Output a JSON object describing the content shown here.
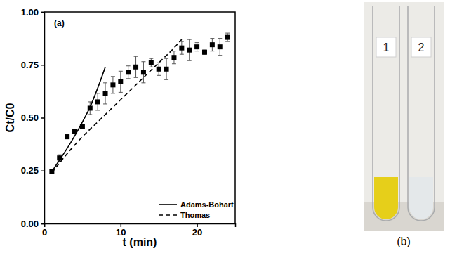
{
  "chart_data": {
    "type": "scatter",
    "panel_label": "(a)",
    "x_label": "t (min)",
    "y_label": "Ct/C0",
    "xlim": [
      0,
      25
    ],
    "xticks": [
      0,
      10,
      20
    ],
    "ylim": [
      0,
      1
    ],
    "yticks": [
      {
        "value": 0,
        "label": "0.00"
      },
      {
        "value": 0.25,
        "label": "0.25"
      },
      {
        "value": 0.5,
        "label": "0.50"
      },
      {
        "value": 0.75,
        "label": "0.75"
      },
      {
        "value": 1,
        "label": "1.00"
      }
    ],
    "grid": false,
    "legend": "lower right",
    "series": [
      {
        "type": "scatter",
        "marker": "square",
        "color": "#000000",
        "x": [
          1,
          2,
          3,
          4,
          5,
          6,
          7,
          8,
          9,
          10,
          11,
          12,
          13,
          14,
          15,
          16,
          17,
          18,
          19,
          20,
          21,
          22,
          23,
          24
        ],
        "values": [
          0.245,
          0.31,
          0.41,
          0.435,
          0.46,
          0.545,
          0.575,
          0.615,
          0.655,
          0.67,
          0.715,
          0.74,
          0.715,
          0.76,
          0.73,
          0.73,
          0.785,
          0.83,
          0.82,
          0.835,
          0.81,
          0.845,
          0.835,
          0.88
        ],
        "errors": [
          0.01,
          0.015,
          0.01,
          0.01,
          0.01,
          0.03,
          0.04,
          0.05,
          0.04,
          0.05,
          0.03,
          0.05,
          0.05,
          0.02,
          0.03,
          0.05,
          0.03,
          0.03,
          0.05,
          0.02,
          0.01,
          0.03,
          0.04,
          0.02
        ]
      },
      {
        "name": "Adams-Bohart",
        "type": "line",
        "line_style": "solid",
        "color": "#000000",
        "x": [
          1,
          2,
          3,
          4,
          5,
          6,
          7,
          8
        ],
        "values": [
          0.245,
          0.3,
          0.355,
          0.415,
          0.48,
          0.55,
          0.64,
          0.74
        ]
      },
      {
        "name": "Thomas",
        "type": "line",
        "line_style": "dashed",
        "color": "#000000",
        "x": [
          1,
          3,
          5,
          7,
          9,
          11,
          13,
          15,
          17,
          18
        ],
        "values": [
          0.24,
          0.33,
          0.41,
          0.48,
          0.55,
          0.62,
          0.69,
          0.76,
          0.83,
          0.87
        ]
      }
    ]
  },
  "photo": {
    "caption": "(b)",
    "tubes": [
      {
        "label": "1",
        "color": "#e6cf1a"
      },
      {
        "label": "2",
        "color": "#e4e8ea"
      }
    ]
  }
}
